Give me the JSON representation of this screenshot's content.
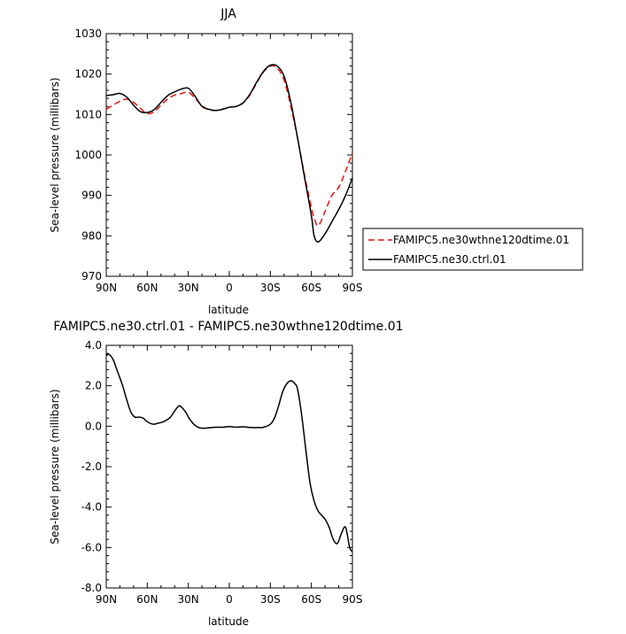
{
  "chart_data": [
    {
      "type": "line",
      "title": "JJA",
      "xlabel": "latitude",
      "ylabel": "Sea-level pressure (millibars)",
      "xlim": [
        90,
        -90
      ],
      "ylim": [
        970,
        1030
      ],
      "x_ticks": [
        90,
        60,
        30,
        0,
        -30,
        -60,
        -90
      ],
      "x_tick_labels": [
        "90N",
        "60N",
        "30N",
        "0",
        "30S",
        "60S",
        "90S"
      ],
      "y_ticks": [
        970,
        980,
        990,
        1000,
        1010,
        1020,
        1030
      ],
      "y_tick_labels": [
        "970",
        "980",
        "990",
        "1000",
        "1010",
        "1020",
        "1030"
      ],
      "legend_position": "right",
      "series": [
        {
          "name": "FAMIPC5.ne30wthne120dtime.01",
          "color": "#e8140f",
          "dash": "dashed",
          "x": [
            90,
            85,
            80,
            75,
            70,
            65,
            60,
            55,
            50,
            45,
            40,
            35,
            30,
            25,
            20,
            15,
            10,
            5,
            0,
            -5,
            -10,
            -15,
            -20,
            -25,
            -30,
            -35,
            -40,
            -45,
            -50,
            -55,
            -60,
            -62,
            -65,
            -70,
            -75,
            -80,
            -85,
            -90
          ],
          "y": [
            1011.3,
            1012.3,
            1013.3,
            1013.8,
            1013.0,
            1011.5,
            1010.2,
            1010.7,
            1012.3,
            1013.9,
            1014.8,
            1015.2,
            1015.5,
            1014.0,
            1012.2,
            1011.2,
            1011.0,
            1011.3,
            1011.8,
            1012.0,
            1012.8,
            1014.8,
            1017.8,
            1020.5,
            1022.0,
            1021.5,
            1018.5,
            1012.0,
            1004.0,
            995.0,
            987.0,
            984.5,
            982.5,
            986.0,
            990.0,
            992.0,
            996.0,
            1000.5
          ]
        },
        {
          "name": "FAMIPC5.ne30.ctrl.01",
          "color": "#000000",
          "dash": "solid",
          "x": [
            90,
            85,
            80,
            75,
            70,
            65,
            60,
            55,
            50,
            45,
            40,
            35,
            30,
            25,
            20,
            15,
            10,
            5,
            0,
            -5,
            -10,
            -15,
            -20,
            -25,
            -30,
            -35,
            -40,
            -45,
            -50,
            -55,
            -60,
            -62,
            -65,
            -70,
            -75,
            -80,
            -85,
            -90
          ],
          "y": [
            1014.7,
            1014.9,
            1015.2,
            1014.3,
            1012.3,
            1010.7,
            1010.5,
            1011.2,
            1013.0,
            1014.7,
            1015.6,
            1016.3,
            1016.5,
            1014.5,
            1012.0,
            1011.3,
            1011.0,
            1011.3,
            1011.8,
            1012.0,
            1012.9,
            1015.0,
            1018.0,
            1020.7,
            1022.2,
            1022.0,
            1019.5,
            1013.0,
            1004.0,
            994.5,
            985.0,
            980.0,
            978.5,
            980.5,
            983.5,
            986.5,
            990.0,
            994.3
          ]
        }
      ]
    },
    {
      "type": "line",
      "title": "FAMIPC5.ne30.ctrl.01 - FAMIPC5.ne30wthne120dtime.01",
      "xlabel": "latitude",
      "ylabel": "Sea-level pressure (millibars)",
      "xlim": [
        90,
        -90
      ],
      "ylim": [
        -8,
        4
      ],
      "x_ticks": [
        90,
        60,
        30,
        0,
        -30,
        -60,
        -90
      ],
      "x_tick_labels": [
        "90N",
        "60N",
        "30N",
        "0",
        "30S",
        "60S",
        "90S"
      ],
      "y_ticks": [
        -8,
        -6,
        -4,
        -2,
        0,
        2,
        4
      ],
      "y_tick_labels": [
        "-8.0",
        "-6.0",
        "-4.0",
        "-2.0",
        "0.0",
        "2.0",
        "4.0"
      ],
      "series": [
        {
          "color": "#000000",
          "dash": "solid",
          "x": [
            90,
            88,
            85,
            82,
            78,
            75,
            72,
            69,
            66,
            63,
            60,
            57,
            55,
            52,
            49,
            46,
            43,
            40,
            37,
            35,
            32,
            29,
            26,
            23,
            20,
            15,
            10,
            5,
            0,
            -5,
            -10,
            -15,
            -20,
            -25,
            -30,
            -33,
            -36,
            -39,
            -42,
            -45,
            -48,
            -50,
            -53,
            -56,
            -59,
            -62,
            -65,
            -70,
            -73,
            -76,
            -79,
            -82,
            -85,
            -88,
            -90
          ],
          "y": [
            3.5,
            3.55,
            3.3,
            2.75,
            2.0,
            1.3,
            0.7,
            0.45,
            0.45,
            0.4,
            0.22,
            0.12,
            0.1,
            0.15,
            0.2,
            0.3,
            0.45,
            0.75,
            1.0,
            0.95,
            0.7,
            0.35,
            0.1,
            -0.05,
            -0.1,
            -0.08,
            -0.05,
            -0.05,
            -0.02,
            -0.05,
            -0.03,
            -0.06,
            -0.07,
            -0.05,
            0.1,
            0.4,
            1.0,
            1.7,
            2.1,
            2.25,
            2.1,
            1.8,
            0.5,
            -1.2,
            -2.8,
            -3.7,
            -4.2,
            -4.6,
            -5.0,
            -5.6,
            -5.8,
            -5.3,
            -5.0,
            -6.0,
            -6.2
          ]
        }
      ]
    }
  ]
}
